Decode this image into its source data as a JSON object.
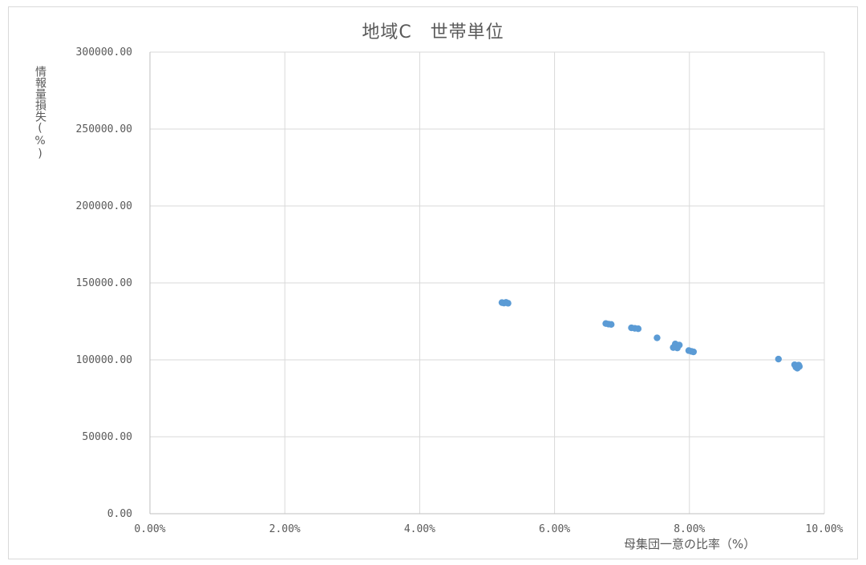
{
  "chart_data": {
    "type": "scatter",
    "title": "地域C　世帯単位",
    "xlabel": "母集団一意の比率（%）",
    "ylabel": "情報量損失(%)",
    "xlim": [
      0,
      10
    ],
    "ylim": [
      0,
      300000
    ],
    "x_ticks": [
      0,
      2,
      4,
      6,
      8,
      10
    ],
    "x_tick_labels": [
      "0.00%",
      "2.00%",
      "4.00%",
      "6.00%",
      "8.00%",
      "10.00%"
    ],
    "y_ticks": [
      0,
      50000,
      100000,
      150000,
      200000,
      250000,
      300000
    ],
    "y_tick_labels": [
      "0.00",
      "50000.00",
      "100000.00",
      "150000.00",
      "200000.00",
      "250000.00",
      "300000.00"
    ],
    "grid": true,
    "legend": "none",
    "marker_color": "#5b9bd5",
    "series": [
      {
        "points": [
          {
            "x": 5.22,
            "y": 137200
          },
          {
            "x": 5.25,
            "y": 136900
          },
          {
            "x": 5.28,
            "y": 137300
          },
          {
            "x": 5.31,
            "y": 136800
          },
          {
            "x": 6.76,
            "y": 123600
          },
          {
            "x": 6.8,
            "y": 123200
          },
          {
            "x": 6.84,
            "y": 123000
          },
          {
            "x": 7.14,
            "y": 120800
          },
          {
            "x": 7.19,
            "y": 120500
          },
          {
            "x": 7.24,
            "y": 120200
          },
          {
            "x": 7.52,
            "y": 114300
          },
          {
            "x": 7.76,
            "y": 108000
          },
          {
            "x": 7.79,
            "y": 110300
          },
          {
            "x": 7.82,
            "y": 107700
          },
          {
            "x": 7.85,
            "y": 109600
          },
          {
            "x": 7.99,
            "y": 106000
          },
          {
            "x": 8.03,
            "y": 105500
          },
          {
            "x": 8.06,
            "y": 105200
          },
          {
            "x": 9.32,
            "y": 100500
          },
          {
            "x": 9.56,
            "y": 96800
          },
          {
            "x": 9.58,
            "y": 95200
          },
          {
            "x": 9.6,
            "y": 94600
          },
          {
            "x": 9.62,
            "y": 96600
          },
          {
            "x": 9.63,
            "y": 95700
          }
        ]
      }
    ]
  }
}
